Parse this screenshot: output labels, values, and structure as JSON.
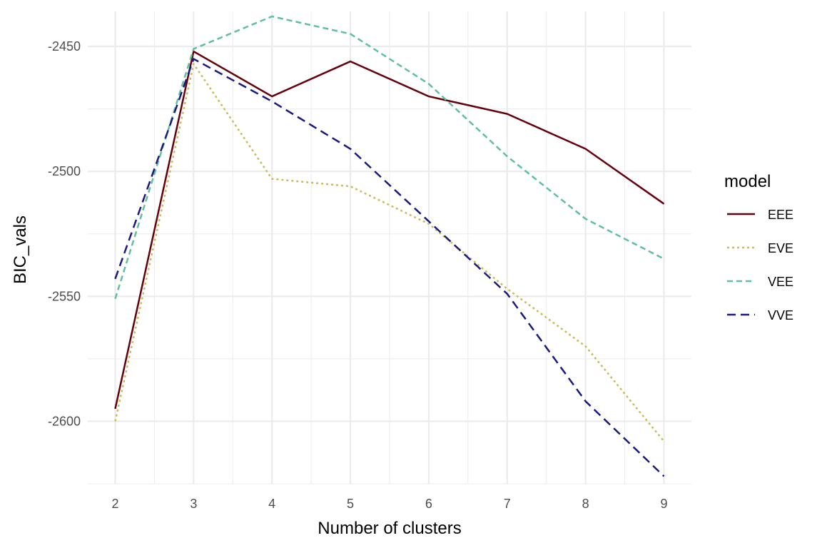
{
  "chart_data": {
    "type": "line",
    "title": "",
    "xlabel": "Number of clusters",
    "ylabel": "BIC_vals",
    "x": [
      2,
      3,
      4,
      5,
      6,
      7,
      8,
      9
    ],
    "x_ticks": [
      "2",
      "3",
      "4",
      "5",
      "6",
      "7",
      "8",
      "9"
    ],
    "y_ticks": [
      -2600,
      -2550,
      -2500,
      -2450
    ],
    "y_tick_labels": [
      "-2600",
      "-2550",
      "-2500",
      "-2450"
    ],
    "xlim": [
      1.65,
      9.35
    ],
    "ylim": [
      -2625,
      -2436
    ],
    "grid": true,
    "legend": {
      "title": "model",
      "position": "right"
    },
    "series": [
      {
        "name": "EEE",
        "color": "#67000d",
        "dash": "solid",
        "values": [
          -2595,
          -2452,
          -2470,
          -2456,
          -2470,
          -2477,
          -2491,
          -2513
        ]
      },
      {
        "name": "EVE",
        "color": "#c8bd5c",
        "dash": "dotted",
        "values": [
          -2600,
          -2457,
          -2503,
          -2506,
          -2521,
          -2547,
          -2570,
          -2608
        ]
      },
      {
        "name": "VEE",
        "color": "#5fc0a0",
        "dash": "dashed",
        "values": [
          -2551,
          -2451,
          -2438,
          -2445,
          -2465,
          -2494,
          -2519,
          -2535
        ]
      },
      {
        "name": "VVE",
        "color": "#1a1a80",
        "dash": "longdash",
        "values": [
          -2543,
          -2455,
          -2472,
          -2491,
          -2520,
          -2549,
          -2592,
          -2622
        ]
      }
    ]
  }
}
